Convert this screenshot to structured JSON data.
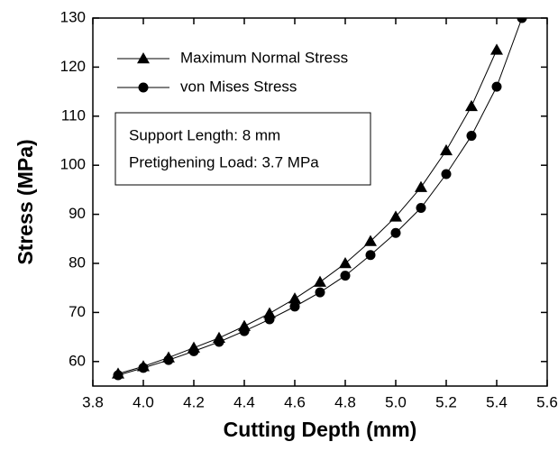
{
  "chart_data": {
    "type": "line",
    "x_label": "Cutting Depth (mm)",
    "y_label": "Stress (MPa)",
    "x": [
      3.9,
      4.0,
      4.1,
      4.2,
      4.3,
      4.4,
      4.5,
      4.6,
      4.7,
      4.8,
      4.9,
      5.0,
      5.1,
      5.2,
      5.3,
      5.4,
      5.5
    ],
    "series": [
      {
        "name": "Maximum Normal Stress",
        "color": "#000000",
        "marker": "triangle",
        "values": [
          57.5,
          59,
          60.8,
          62.8,
          64.8,
          67.2,
          69.8,
          72.8,
          76.2,
          80,
          84.5,
          89.5,
          95.5,
          103,
          112,
          123.5,
          null
        ]
      },
      {
        "name": "von Mises Stress",
        "color": "#000000",
        "marker": "circle",
        "values": [
          57.2,
          58.7,
          60.3,
          62.1,
          64,
          66.2,
          68.6,
          71.2,
          74.1,
          77.5,
          81.7,
          86.2,
          91.3,
          98.2,
          106,
          116,
          130
        ]
      }
    ],
    "annotation": [
      "Support Length: 8 mm",
      "Pretighening Load: 3.7 MPa"
    ],
    "xlim": [
      3.8,
      5.6
    ],
    "xticks": [
      {
        "value": 3.8,
        "label": "3.8"
      },
      {
        "value": 4.0,
        "label": "4.0"
      },
      {
        "value": 4.2,
        "label": "4.2"
      },
      {
        "value": 4.4,
        "label": "4.4"
      },
      {
        "value": 4.6,
        "label": "4.6"
      },
      {
        "value": 4.8,
        "label": "4.8"
      },
      {
        "value": 5.0,
        "label": "5.0"
      },
      {
        "value": 5.2,
        "label": "5.2"
      },
      {
        "value": 5.4,
        "label": "5.4"
      },
      {
        "value": 5.6,
        "label": "5.6"
      }
    ],
    "ylim": [
      55,
      130
    ],
    "yticks": [
      60,
      70,
      80,
      90,
      100,
      110,
      120,
      130
    ],
    "grid": false
  }
}
